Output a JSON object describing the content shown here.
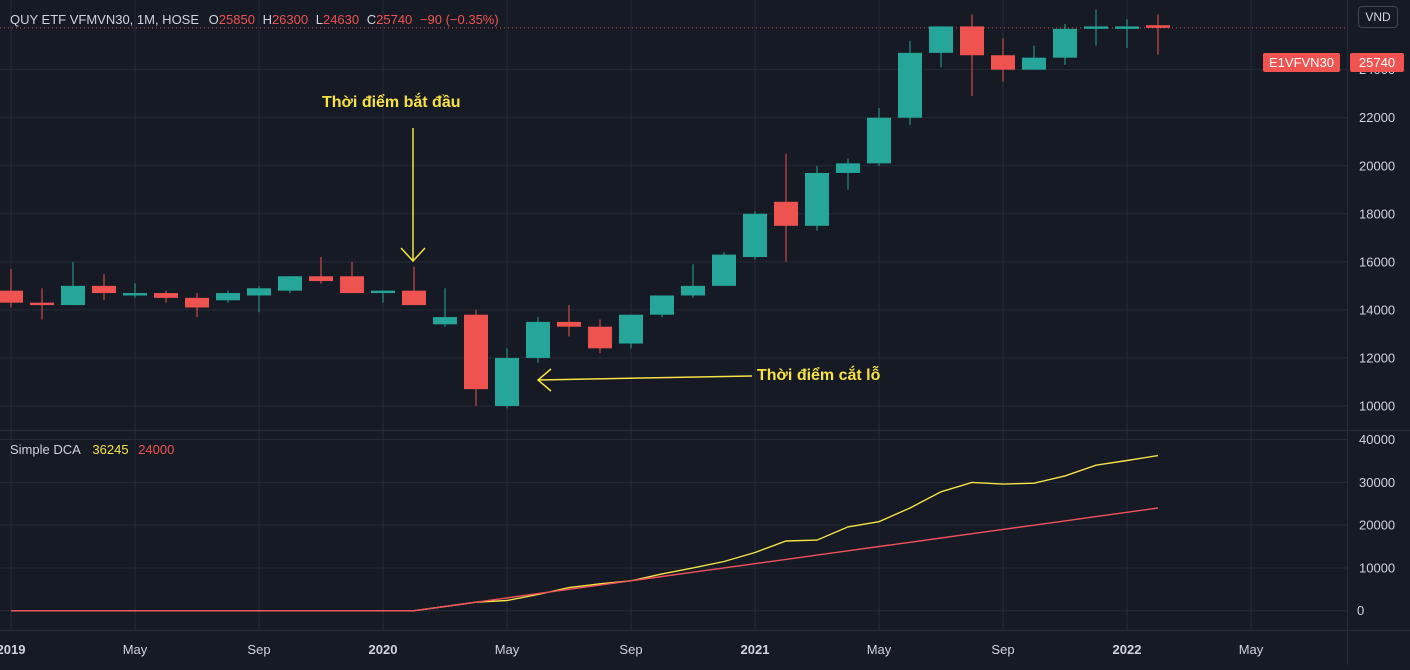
{
  "header": {
    "symbol_label": "QUY ETF VFMVN30, 1M, HOSE",
    "open_key": "O",
    "open": "25850",
    "high_key": "H",
    "high": "26300",
    "low_key": "L",
    "low": "24630",
    "close_key": "C",
    "close": "25740",
    "change": "−90 (−0.35%)"
  },
  "currency_badge": "VND",
  "price_tags": {
    "symbol": "E1VFVN30",
    "last": "25740"
  },
  "indicator": {
    "name": "Simple DCA",
    "value1": "36245",
    "value2": "24000"
  },
  "annotations": {
    "start": "Thời điểm bắt đầu",
    "stop_loss": "Thời điểm cắt lỗ"
  },
  "colors": {
    "background": "#161a25",
    "grid": "#252a36",
    "up": "#26a69a",
    "down": "#ef5350",
    "dca_value": "#f6e245",
    "dca_cost": "#f0525a",
    "annotation": "#f6e245",
    "text": "#d1d4dc"
  },
  "chart_data": [
    {
      "type": "candlestick",
      "title": "QUY ETF VFMVN30, 1M, HOSE",
      "x_tick_labels": [
        "2019",
        "May",
        "Sep",
        "2020",
        "May",
        "Sep",
        "2021",
        "May",
        "Sep",
        "2022",
        "May"
      ],
      "y_tick_labels": [
        10000,
        12000,
        14000,
        16000,
        18000,
        20000,
        22000,
        24000
      ],
      "ylim": [
        9000,
        26900
      ],
      "grid": true,
      "candles": [
        {
          "t": "2019-01",
          "o": 14800,
          "h": 15700,
          "l": 14100,
          "c": 14300
        },
        {
          "t": "2019-02",
          "o": 14300,
          "h": 14900,
          "l": 13600,
          "c": 14200
        },
        {
          "t": "2019-03",
          "o": 14200,
          "h": 16000,
          "l": 14200,
          "c": 15000
        },
        {
          "t": "2019-04",
          "o": 15000,
          "h": 15500,
          "l": 14400,
          "c": 14700
        },
        {
          "t": "2019-05",
          "o": 14600,
          "h": 15100,
          "l": 14500,
          "c": 14700
        },
        {
          "t": "2019-06",
          "o": 14700,
          "h": 14800,
          "l": 14300,
          "c": 14500
        },
        {
          "t": "2019-07",
          "o": 14500,
          "h": 14700,
          "l": 13700,
          "c": 14100
        },
        {
          "t": "2019-08",
          "o": 14400,
          "h": 14800,
          "l": 14300,
          "c": 14700
        },
        {
          "t": "2019-09",
          "o": 14600,
          "h": 15000,
          "l": 13900,
          "c": 14900
        },
        {
          "t": "2019-10",
          "o": 14800,
          "h": 15400,
          "l": 14700,
          "c": 15400
        },
        {
          "t": "2019-11",
          "o": 15400,
          "h": 16200,
          "l": 15100,
          "c": 15200
        },
        {
          "t": "2019-12",
          "o": 15400,
          "h": 16000,
          "l": 14700,
          "c": 14700
        },
        {
          "t": "2020-01",
          "o": 14700,
          "h": 14800,
          "l": 14300,
          "c": 14800
        },
        {
          "t": "2020-02",
          "o": 14800,
          "h": 15800,
          "l": 14200,
          "c": 14200
        },
        {
          "t": "2020-03",
          "o": 13400,
          "h": 14900,
          "l": 13300,
          "c": 13700
        },
        {
          "t": "2020-04",
          "o": 13800,
          "h": 14000,
          "l": 10000,
          "c": 10700
        },
        {
          "t": "2020-05",
          "o": 10000,
          "h": 12400,
          "l": 9900,
          "c": 12000
        },
        {
          "t": "2020-06",
          "o": 12000,
          "h": 13700,
          "l": 11800,
          "c": 13500
        },
        {
          "t": "2020-07",
          "o": 13500,
          "h": 14200,
          "l": 12900,
          "c": 13300
        },
        {
          "t": "2020-08",
          "o": 13300,
          "h": 13600,
          "l": 12200,
          "c": 12400
        },
        {
          "t": "2020-09",
          "o": 12600,
          "h": 13800,
          "l": 12400,
          "c": 13800
        },
        {
          "t": "2020-10",
          "o": 13800,
          "h": 14600,
          "l": 13700,
          "c": 14600
        },
        {
          "t": "2020-11",
          "o": 14600,
          "h": 15900,
          "l": 14500,
          "c": 15000
        },
        {
          "t": "2020-12",
          "o": 15000,
          "h": 16400,
          "l": 15000,
          "c": 16300
        },
        {
          "t": "2021-01",
          "o": 16200,
          "h": 18100,
          "l": 16100,
          "c": 18000
        },
        {
          "t": "2021-02",
          "o": 18500,
          "h": 20500,
          "l": 16000,
          "c": 17500
        },
        {
          "t": "2021-03",
          "o": 17500,
          "h": 20000,
          "l": 17300,
          "c": 19700
        },
        {
          "t": "2021-04",
          "o": 19700,
          "h": 20300,
          "l": 19000,
          "c": 20100
        },
        {
          "t": "2021-05",
          "o": 20100,
          "h": 22400,
          "l": 20000,
          "c": 22000
        },
        {
          "t": "2021-06",
          "o": 22000,
          "h": 25200,
          "l": 21700,
          "c": 24700
        },
        {
          "t": "2021-07",
          "o": 24700,
          "h": 25800,
          "l": 24100,
          "c": 25800
        },
        {
          "t": "2021-08",
          "o": 25800,
          "h": 26300,
          "l": 22900,
          "c": 24600
        },
        {
          "t": "2021-09",
          "o": 24600,
          "h": 25300,
          "l": 23500,
          "c": 24000
        },
        {
          "t": "2021-10",
          "o": 24000,
          "h": 25000,
          "l": 24000,
          "c": 24500
        },
        {
          "t": "2021-11",
          "o": 24500,
          "h": 25900,
          "l": 24200,
          "c": 25700
        },
        {
          "t": "2021-12",
          "o": 25700,
          "h": 26500,
          "l": 25000,
          "c": 25800
        },
        {
          "t": "2022-01",
          "o": 25700,
          "h": 26100,
          "l": 24900,
          "c": 25800
        },
        {
          "t": "2022-02",
          "o": 25850,
          "h": 26300,
          "l": 24630,
          "c": 25740
        }
      ],
      "last_price": 25740
    },
    {
      "type": "line",
      "title": "Simple DCA",
      "y_tick_labels": [
        0,
        10000,
        20000,
        30000,
        40000
      ],
      "ylim": [
        -4500,
        42000
      ],
      "grid": true,
      "x": [
        "2019-01",
        "2019-02",
        "2019-03",
        "2019-04",
        "2019-05",
        "2019-06",
        "2019-07",
        "2019-08",
        "2019-09",
        "2019-10",
        "2019-11",
        "2019-12",
        "2020-01",
        "2020-02",
        "2020-03",
        "2020-04",
        "2020-05",
        "2020-06",
        "2020-07",
        "2020-08",
        "2020-09",
        "2020-10",
        "2020-11",
        "2020-12",
        "2021-01",
        "2021-02",
        "2021-03",
        "2021-04",
        "2021-05",
        "2021-06",
        "2021-07",
        "2021-08",
        "2021-09",
        "2021-10",
        "2021-11",
        "2021-12",
        "2022-01",
        "2022-02"
      ],
      "series": [
        {
          "name": "36245",
          "color": "#f6e245",
          "values": [
            0,
            0,
            0,
            0,
            0,
            0,
            0,
            0,
            0,
            0,
            0,
            0,
            0,
            0,
            1000,
            2000,
            2400,
            3800,
            5400,
            6300,
            7000,
            8600,
            10000,
            11500,
            13600,
            16300,
            16500,
            19600,
            20800,
            24000,
            27800,
            30000,
            29600,
            29800,
            31500,
            34000,
            35100,
            36245
          ]
        },
        {
          "name": "24000",
          "color": "#f0525a",
          "values": [
            0,
            0,
            0,
            0,
            0,
            0,
            0,
            0,
            0,
            0,
            0,
            0,
            0,
            0,
            1000,
            2000,
            3000,
            4000,
            5000,
            6000,
            7000,
            8000,
            9000,
            10000,
            11000,
            12000,
            13000,
            14000,
            15000,
            16000,
            17000,
            18000,
            19000,
            20000,
            21000,
            22000,
            23000,
            24000
          ]
        }
      ]
    }
  ]
}
